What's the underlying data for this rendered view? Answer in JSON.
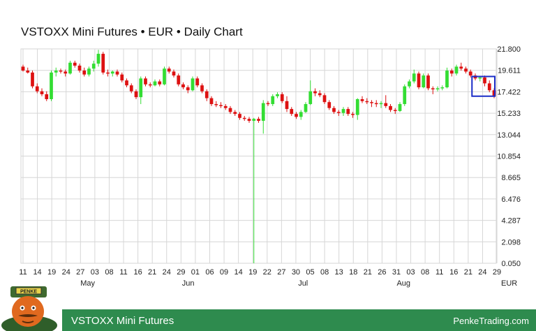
{
  "title": "VSTOXX Mini Futures • EUR • Daily Chart",
  "footer": {
    "left": "VSTOXX Mini Futures",
    "right": "PenkeTrading.com"
  },
  "mascot": {
    "label": "PENKE"
  },
  "colors": {
    "up": "#33dd33",
    "down": "#dd1111",
    "grid": "#d6d6d6",
    "highlight": "#1a2cc7",
    "footer": "#2e8b4e"
  },
  "chart_data": {
    "type": "candlestick",
    "currency_label": "EUR",
    "y_ticks": [
      "21.800",
      "19.611",
      "17.422",
      "15.233",
      "13.044",
      "10.854",
      "8.665",
      "6.476",
      "4.287",
      "2.098",
      "0.050"
    ],
    "ylim": [
      0.05,
      21.8
    ],
    "x_ticks": [
      "11",
      "14",
      "19",
      "24",
      "27",
      "03",
      "08",
      "11",
      "16",
      "21",
      "24",
      "29",
      "01",
      "06",
      "09",
      "14",
      "19",
      "22",
      "27",
      "30",
      "05",
      "08",
      "13",
      "18",
      "21",
      "26",
      "31",
      "03",
      "08",
      "11",
      "16",
      "21",
      "24",
      "29"
    ],
    "month_labels": [
      {
        "label": "May",
        "after_tick": 5
      },
      {
        "label": "Jun",
        "after_tick": 12
      },
      {
        "label": "Jul",
        "after_tick": 20
      },
      {
        "label": "Aug",
        "after_tick": 27
      }
    ],
    "highlight_range": [
      17.0,
      19.0
    ],
    "candles": [
      [
        20.0,
        20.2,
        19.5,
        19.6
      ],
      [
        19.6,
        19.9,
        19.3,
        19.4
      ],
      [
        19.4,
        19.6,
        17.8,
        18.0
      ],
      [
        18.0,
        18.3,
        17.3,
        17.5
      ],
      [
        17.5,
        17.8,
        17.0,
        17.2
      ],
      [
        17.2,
        17.5,
        16.5,
        16.7
      ],
      [
        16.7,
        19.6,
        16.5,
        19.4
      ],
      [
        19.4,
        19.9,
        19.0,
        19.6
      ],
      [
        19.6,
        19.8,
        19.3,
        19.5
      ],
      [
        19.5,
        19.7,
        19.0,
        19.3
      ],
      [
        19.3,
        20.6,
        19.2,
        20.4
      ],
      [
        20.4,
        20.6,
        19.9,
        20.1
      ],
      [
        20.1,
        20.3,
        19.4,
        19.6
      ],
      [
        19.6,
        19.9,
        19.0,
        19.2
      ],
      [
        19.2,
        20.0,
        19.0,
        19.8
      ],
      [
        19.8,
        20.6,
        19.5,
        20.3
      ],
      [
        20.3,
        21.7,
        20.0,
        21.3
      ],
      [
        21.3,
        21.5,
        19.2,
        19.4
      ],
      [
        19.4,
        19.7,
        19.0,
        19.3
      ],
      [
        19.3,
        19.6,
        19.0,
        19.5
      ],
      [
        19.5,
        19.7,
        19.0,
        19.2
      ],
      [
        19.2,
        19.4,
        18.4,
        18.6
      ],
      [
        18.6,
        18.8,
        17.9,
        18.1
      ],
      [
        18.1,
        18.3,
        17.3,
        17.5
      ],
      [
        17.5,
        17.7,
        16.7,
        16.9
      ],
      [
        16.9,
        19.0,
        16.2,
        18.8
      ],
      [
        18.8,
        19.0,
        18.0,
        18.2
      ],
      [
        18.2,
        18.4,
        17.9,
        18.1
      ],
      [
        18.1,
        18.7,
        18.0,
        18.5
      ],
      [
        18.5,
        18.7,
        18.0,
        18.2
      ],
      [
        18.2,
        20.0,
        18.1,
        19.8
      ],
      [
        19.8,
        20.0,
        19.3,
        19.5
      ],
      [
        19.5,
        19.7,
        18.9,
        19.1
      ],
      [
        19.1,
        19.3,
        18.0,
        18.2
      ],
      [
        18.2,
        18.4,
        17.7,
        17.9
      ],
      [
        17.9,
        18.1,
        17.3,
        17.6
      ],
      [
        17.6,
        19.0,
        17.5,
        18.8
      ],
      [
        18.8,
        19.0,
        17.9,
        18.1
      ],
      [
        18.1,
        18.3,
        17.3,
        17.5
      ],
      [
        17.5,
        17.7,
        16.5,
        16.8
      ],
      [
        16.8,
        17.0,
        16.0,
        16.2
      ],
      [
        16.2,
        16.5,
        15.9,
        16.1
      ],
      [
        16.1,
        16.4,
        15.8,
        16.0
      ],
      [
        16.0,
        16.2,
        15.6,
        15.8
      ],
      [
        15.8,
        16.0,
        15.2,
        15.4
      ],
      [
        15.4,
        15.6,
        15.0,
        15.2
      ],
      [
        15.2,
        15.4,
        14.6,
        14.8
      ],
      [
        14.8,
        15.0,
        14.5,
        14.7
      ],
      [
        14.7,
        14.9,
        14.3,
        14.5
      ],
      [
        14.5,
        14.8,
        0.05,
        14.7
      ],
      [
        14.7,
        14.9,
        14.3,
        14.5
      ],
      [
        14.5,
        16.6,
        13.2,
        16.3
      ],
      [
        16.3,
        16.5,
        16.0,
        16.2
      ],
      [
        16.2,
        17.2,
        16.0,
        17.0
      ],
      [
        17.0,
        17.4,
        16.8,
        17.2
      ],
      [
        17.2,
        17.4,
        16.3,
        16.5
      ],
      [
        16.5,
        17.0,
        15.4,
        15.7
      ],
      [
        15.7,
        15.9,
        15.0,
        15.2
      ],
      [
        15.2,
        15.4,
        14.7,
        14.9
      ],
      [
        14.9,
        15.6,
        14.6,
        15.4
      ],
      [
        15.4,
        16.4,
        15.3,
        16.2
      ],
      [
        16.2,
        18.6,
        16.1,
        17.5
      ],
      [
        17.5,
        17.8,
        17.0,
        17.3
      ],
      [
        17.3,
        17.6,
        16.9,
        17.1
      ],
      [
        17.1,
        17.3,
        16.2,
        16.4
      ],
      [
        16.4,
        16.6,
        15.6,
        15.8
      ],
      [
        15.8,
        16.0,
        15.2,
        15.4
      ],
      [
        15.4,
        15.6,
        15.0,
        15.3
      ],
      [
        15.3,
        15.9,
        15.0,
        15.7
      ],
      [
        15.7,
        15.9,
        15.0,
        15.2
      ],
      [
        15.2,
        15.4,
        14.8,
        15.1
      ],
      [
        15.1,
        16.8,
        14.6,
        16.7
      ],
      [
        16.7,
        17.0,
        16.3,
        16.5
      ],
      [
        16.5,
        16.8,
        16.2,
        16.4
      ],
      [
        16.4,
        16.6,
        15.9,
        16.3
      ],
      [
        16.3,
        16.6,
        15.9,
        16.2
      ],
      [
        16.2,
        16.5,
        15.8,
        16.3
      ],
      [
        16.3,
        17.1,
        15.8,
        16.0
      ],
      [
        16.0,
        16.2,
        15.4,
        15.6
      ],
      [
        15.6,
        15.8,
        15.2,
        15.5
      ],
      [
        15.5,
        16.4,
        15.4,
        16.2
      ],
      [
        16.2,
        18.2,
        16.0,
        18.0
      ],
      [
        18.0,
        18.7,
        17.8,
        18.5
      ],
      [
        18.5,
        19.7,
        18.3,
        19.3
      ],
      [
        19.3,
        19.5,
        17.7,
        17.9
      ],
      [
        17.9,
        19.3,
        17.8,
        19.1
      ],
      [
        19.1,
        19.3,
        17.6,
        17.8
      ],
      [
        17.8,
        18.0,
        17.2,
        17.7
      ],
      [
        17.7,
        18.0,
        17.5,
        17.8
      ],
      [
        17.8,
        18.1,
        17.6,
        17.9
      ],
      [
        17.9,
        19.9,
        17.8,
        19.6
      ],
      [
        19.6,
        19.8,
        19.0,
        19.3
      ],
      [
        19.3,
        20.2,
        19.1,
        20.0
      ],
      [
        20.0,
        20.4,
        19.6,
        19.8
      ],
      [
        19.8,
        20.0,
        19.3,
        19.5
      ],
      [
        19.5,
        19.7,
        18.9,
        19.1
      ],
      [
        19.1,
        19.3,
        18.6,
        18.8
      ],
      [
        18.8,
        19.0,
        18.5,
        18.9
      ],
      [
        18.9,
        19.1,
        18.0,
        18.3
      ],
      [
        18.3,
        18.6,
        17.4,
        17.6
      ],
      [
        17.6,
        17.8,
        16.8,
        17.0
      ]
    ]
  }
}
